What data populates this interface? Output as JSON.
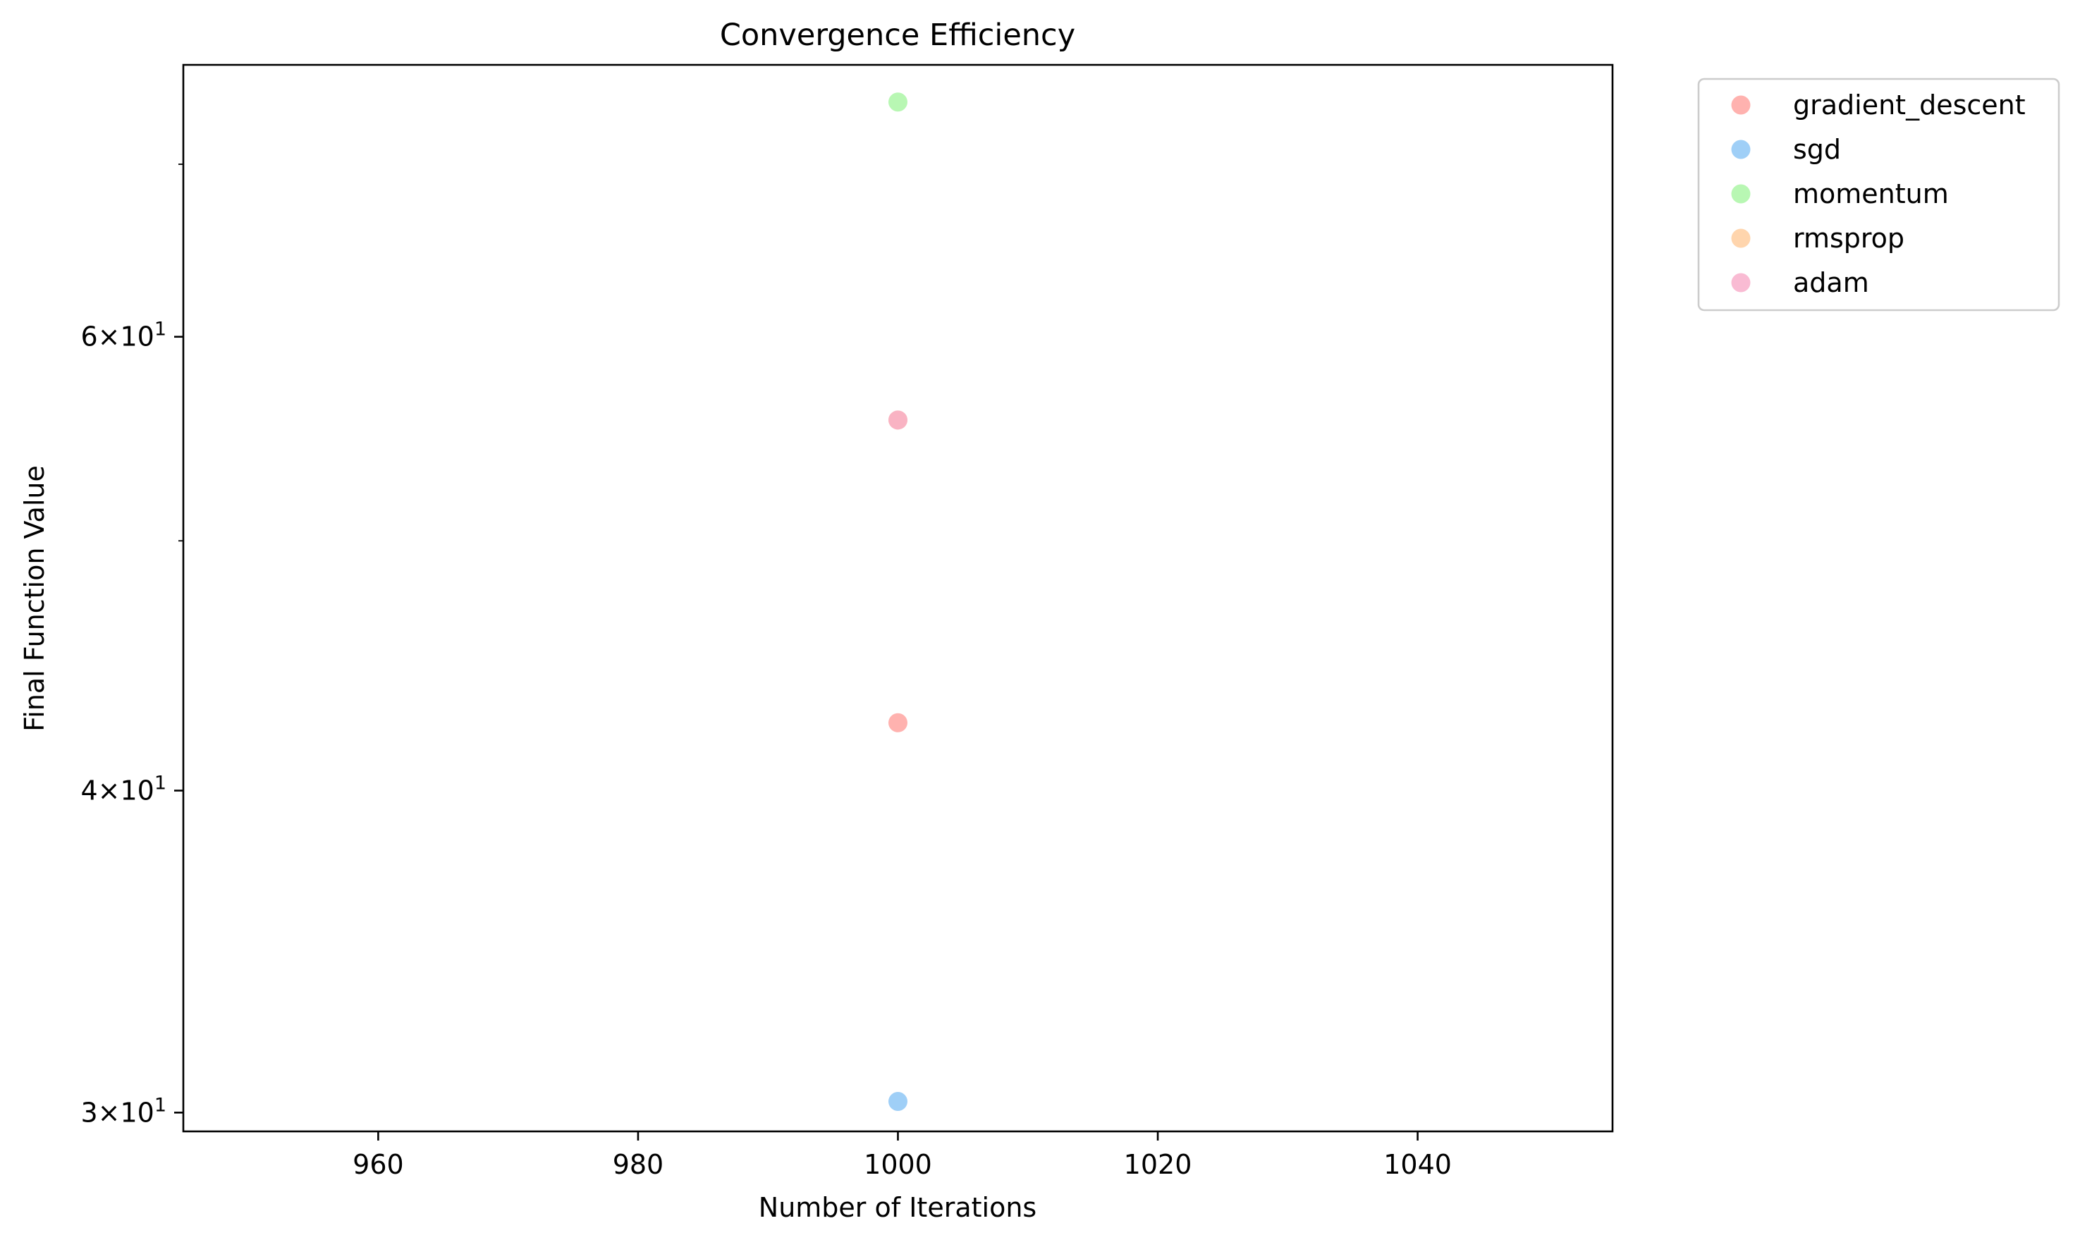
{
  "chart_data": {
    "type": "scatter",
    "title": "Convergence Efficiency",
    "xlabel": "Number of Iterations",
    "ylabel": "Final Function Value",
    "x_scale": "linear",
    "y_scale": "log",
    "xlim": [
      945,
      1055
    ],
    "ylim": [
      29.5,
      76.5
    ],
    "x_ticks": [
      960,
      980,
      1000,
      1020,
      1040
    ],
    "x_tick_labels": [
      "960",
      "980",
      "1000",
      "1020",
      "1040"
    ],
    "y_ticks": [
      {
        "value": 30,
        "mantissa": "3",
        "base": "10",
        "exponent": "1"
      },
      {
        "value": 40,
        "mantissa": "4",
        "base": "10",
        "exponent": "1"
      },
      {
        "value": 60,
        "mantissa": "6",
        "base": "10",
        "exponent": "1"
      }
    ],
    "y_minor_ticks": [
      50,
      70
    ],
    "grid": false,
    "legend_position": "outside-top-right",
    "series": [
      {
        "name": "gradient_descent",
        "color": "#ff9f9b",
        "points": [
          {
            "x": 1000,
            "y": 42.5
          }
        ]
      },
      {
        "name": "sgd",
        "color": "#87c3f5",
        "points": [
          {
            "x": 1000,
            "y": 30.3
          }
        ]
      },
      {
        "name": "momentum",
        "color": "#a6f5a0",
        "points": [
          {
            "x": 1000,
            "y": 74.0
          }
        ]
      },
      {
        "name": "rmsprop",
        "color": "#ffcb99",
        "points": [
          {
            "x": 1000,
            "y": 55.7
          }
        ]
      },
      {
        "name": "adam",
        "color": "#f7aac8",
        "points": [
          {
            "x": 1000,
            "y": 55.7
          }
        ]
      }
    ]
  }
}
